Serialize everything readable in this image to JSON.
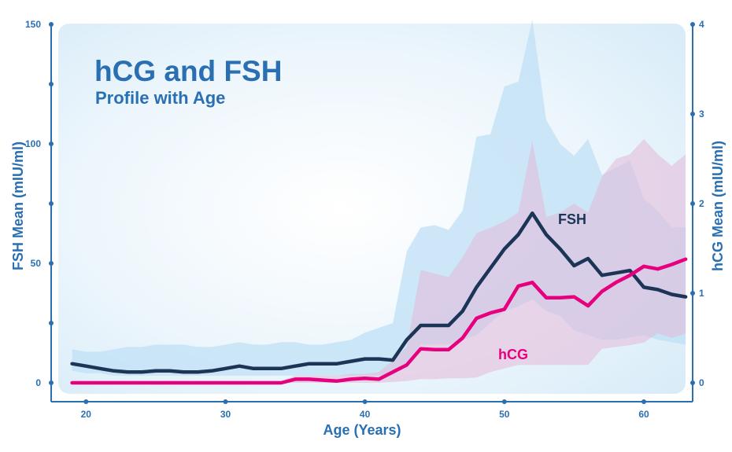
{
  "chart_data": {
    "type": "line",
    "title": "hCG and FSH",
    "subtitle": "Profile with Age",
    "xlabel": "Age (Years)",
    "ylabel_left": "FSH Mean (mIU/ml)",
    "ylabel_right": "hCG Mean (mIU/ml)",
    "xlim": [
      17.5,
      63.5
    ],
    "ylim_left": [
      0,
      150
    ],
    "ylim_right": [
      0,
      4
    ],
    "x_ticks": [
      20,
      30,
      40,
      50,
      60
    ],
    "y_left_ticks": [
      0,
      50,
      100,
      150
    ],
    "y_right_ticks": [
      0,
      1,
      2,
      3,
      4
    ],
    "series": [
      {
        "name": "FSH",
        "axis": "left",
        "color": "#1c3557",
        "label": "FSH",
        "x": [
          19,
          20,
          21,
          22,
          23,
          24,
          25,
          26,
          27,
          28,
          29,
          30,
          31,
          32,
          33,
          34,
          35,
          36,
          37,
          38,
          39,
          40,
          41,
          42,
          43,
          44,
          45,
          46,
          47,
          48,
          49,
          50,
          51,
          52,
          53,
          54,
          55,
          56,
          57,
          58,
          59,
          60,
          61,
          62,
          63
        ],
        "values": [
          8,
          7,
          6,
          5,
          4.5,
          4.5,
          5,
          5,
          4.5,
          4.5,
          5,
          6,
          7,
          6,
          6,
          6,
          7,
          8,
          8,
          8,
          9,
          10,
          10,
          9.5,
          18,
          24,
          24,
          24,
          30,
          40,
          48,
          56,
          62,
          71,
          62,
          56,
          49,
          52,
          45,
          46,
          47,
          40,
          39,
          37,
          36
        ],
        "band_low": [
          5,
          4,
          4,
          3,
          3,
          3,
          3,
          3,
          3,
          3,
          3,
          3,
          3,
          3,
          3,
          3,
          3,
          3,
          3,
          3,
          3,
          3,
          3,
          3,
          8,
          16,
          16,
          16,
          18,
          20,
          25,
          30,
          32,
          35,
          30,
          28,
          22,
          20,
          18,
          18,
          19,
          20,
          18,
          17,
          16
        ],
        "band_high": [
          14,
          13,
          13,
          14,
          15,
          15,
          16,
          16,
          16,
          15,
          15,
          16,
          17,
          16,
          16,
          17,
          17,
          16,
          16,
          17,
          18,
          21,
          23,
          25,
          55,
          65,
          66,
          64,
          72,
          103,
          104,
          124,
          126,
          152,
          110,
          100,
          95,
          102,
          87,
          90,
          93,
          77,
          72,
          65,
          65
        ]
      },
      {
        "name": "hCG",
        "axis": "right",
        "color": "#e6007e",
        "label": "hCG",
        "x": [
          19,
          20,
          21,
          22,
          23,
          24,
          25,
          26,
          27,
          28,
          29,
          30,
          31,
          32,
          33,
          34,
          35,
          36,
          37,
          38,
          39,
          40,
          41,
          42,
          43,
          44,
          45,
          46,
          47,
          48,
          49,
          50,
          51,
          52,
          53,
          54,
          55,
          56,
          57,
          58,
          59,
          60,
          61,
          62,
          63
        ],
        "values": [
          0,
          0,
          0,
          0,
          0,
          0,
          0,
          0,
          0,
          0,
          0,
          0,
          0,
          0,
          0,
          0,
          0.04,
          0.04,
          0.03,
          0.02,
          0.04,
          0.05,
          0.04,
          0.12,
          0.2,
          0.38,
          0.37,
          0.37,
          0.5,
          0.72,
          0.78,
          0.82,
          1.08,
          1.12,
          0.95,
          0.95,
          0.96,
          0.86,
          1.02,
          1.12,
          1.2,
          1.3,
          1.27,
          1.32,
          1.38
        ],
        "band_low": [
          0,
          0,
          0,
          0,
          0,
          0,
          0,
          0,
          0,
          0,
          0,
          0,
          0,
          0,
          0,
          0,
          0,
          0,
          0,
          0,
          0,
          0,
          0,
          0.01,
          0.02,
          0.04,
          0.04,
          0.05,
          0.05,
          0.06,
          0.12,
          0.16,
          0.2,
          0.2,
          0.2,
          0.2,
          0.2,
          0.2,
          0.38,
          0.4,
          0.42,
          0.45,
          0.55,
          0.5,
          0.55
        ],
        "band_high": [
          0.02,
          0.02,
          0.02,
          0.02,
          0.02,
          0.02,
          0.02,
          0.02,
          0.02,
          0.02,
          0.02,
          0.02,
          0.02,
          0.02,
          0.02,
          0.02,
          0.08,
          0.08,
          0.08,
          0.08,
          0.1,
          0.1,
          0.12,
          0.25,
          0.4,
          1.26,
          1.22,
          1.18,
          1.4,
          1.67,
          1.73,
          1.8,
          1.9,
          2.7,
          1.85,
          1.9,
          2.0,
          1.9,
          2.3,
          2.5,
          2.55,
          2.72,
          2.55,
          2.42,
          2.55
        ]
      }
    ]
  }
}
